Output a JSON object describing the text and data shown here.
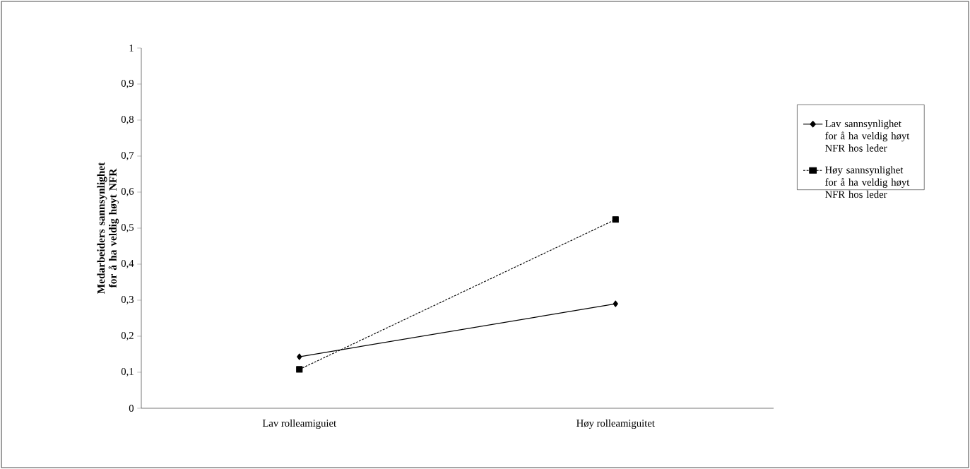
{
  "chart_data": {
    "type": "line",
    "ylabel": "Medarbeiders sannsynlighet for å ha veldig høyt NFR",
    "categories": [
      "Lav rolleamiguiet",
      "Høy rolleamiguitet"
    ],
    "series": [
      {
        "name": "Lav sannsynlighet for å ha veldig høyt NFR hos leder",
        "color": "#000000",
        "values": [
          0.143,
          0.29
        ],
        "marker": "diamond",
        "line_style": "solid"
      },
      {
        "name": "Høy sannsynlighet for å ha veldig høyt NFR hos leder",
        "color": "#000000",
        "values": [
          0.108,
          0.524
        ],
        "marker": "square",
        "line_style": "dashed"
      }
    ],
    "ylim": [
      0,
      1
    ],
    "yticks": [
      0,
      {
        "value": 0.1,
        "label": "0,1"
      },
      {
        "value": 0.2,
        "label": "0,2"
      },
      {
        "value": 0.3,
        "label": "0,3"
      },
      {
        "value": 0.4,
        "label": "0,4"
      },
      {
        "value": 0.5,
        "label": "0,5"
      },
      {
        "value": 0.6,
        "label": "0,6"
      },
      {
        "value": 0.7,
        "label": "0,7"
      },
      {
        "value": 0.8,
        "label": "0,8"
      },
      {
        "value": 0.9,
        "label": "0,9"
      },
      1
    ],
    "legend": "right",
    "grid": false
  }
}
